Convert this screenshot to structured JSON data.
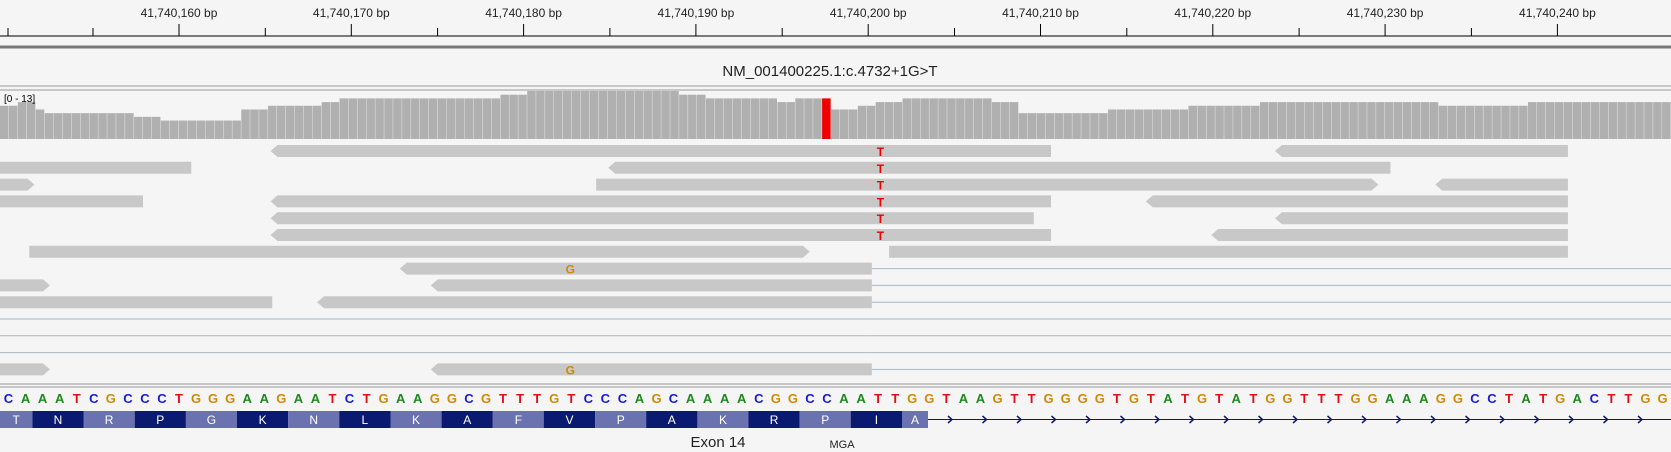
{
  "ruler": {
    "labels": [
      "41,740,160 bp",
      "41,740,170 bp",
      "41,740,180 bp",
      "41,740,190 bp",
      "41,740,200 bp",
      "41,740,210 bp",
      "41,740,220 bp",
      "41,740,230 bp",
      "41,740,240 bp"
    ]
  },
  "title": "NM_001400225.1:c.4732+1G>T",
  "coverage": {
    "range_label": "[0 - 13]",
    "max": 13,
    "values": [
      9,
      9,
      10,
      10,
      8,
      7,
      7,
      7,
      7,
      7,
      7,
      7,
      7,
      7,
      7,
      6,
      6,
      6,
      5,
      5,
      5,
      5,
      5,
      5,
      5,
      5,
      5,
      8,
      8,
      8,
      9,
      9,
      9,
      9,
      9,
      9,
      10,
      10,
      11,
      11,
      11,
      11,
      11,
      11,
      11,
      11,
      11,
      11,
      11,
      11,
      11,
      11,
      11,
      11,
      11,
      11,
      12,
      12,
      12,
      13,
      13,
      13,
      13,
      13,
      13,
      13,
      13,
      13,
      13,
      13,
      13,
      13,
      13,
      13,
      13,
      13,
      12,
      12,
      12,
      11,
      11,
      11,
      11,
      11,
      11,
      11,
      11,
      10,
      10,
      11,
      11,
      11,
      11,
      8,
      8,
      8,
      9,
      9,
      10,
      10,
      10,
      11,
      11,
      11,
      11,
      11,
      11,
      11,
      11,
      11,
      11,
      10,
      10,
      10,
      7,
      7,
      7,
      7,
      7,
      7,
      7,
      7,
      7,
      7,
      8,
      8,
      8,
      8,
      8,
      8,
      8,
      8,
      8,
      9,
      9,
      9,
      9,
      9,
      9,
      9,
      9,
      10,
      10,
      10,
      10,
      10,
      10,
      10,
      10,
      10,
      10,
      10,
      10,
      10,
      10,
      10,
      10,
      10,
      10,
      10,
      10,
      9,
      9,
      9,
      9,
      9,
      9,
      9,
      9,
      9,
      9,
      10,
      10,
      10,
      10,
      10,
      10,
      10,
      10,
      10,
      10,
      10,
      10,
      10,
      10,
      10,
      10
    ]
  },
  "variant": {
    "base": "T",
    "color": "#ee0000"
  },
  "mismatch_g": "G",
  "reference": {
    "sequence": "CAAATCGCCCTGGGAAGAATCTGAAGGCGTTTGTCCCAGCAAAACGGCCAATTGGTAAGTTGGGGTGTATGTATGGTTTGGAAAGGCCTATGACTTGG",
    "base_colors": {
      "A": "#1a8a1a",
      "C": "#1a1ad6",
      "G": "#d18a00",
      "T": "#e01010"
    }
  },
  "amino_acids": [
    "T",
    "N",
    "R",
    "P",
    "G",
    "K",
    "N",
    "L",
    "K",
    "A",
    "F",
    "V",
    "P",
    "A",
    "K",
    "R",
    "P",
    "I",
    "A"
  ],
  "gene": {
    "exon": "Exon 14",
    "name": "MGA"
  }
}
